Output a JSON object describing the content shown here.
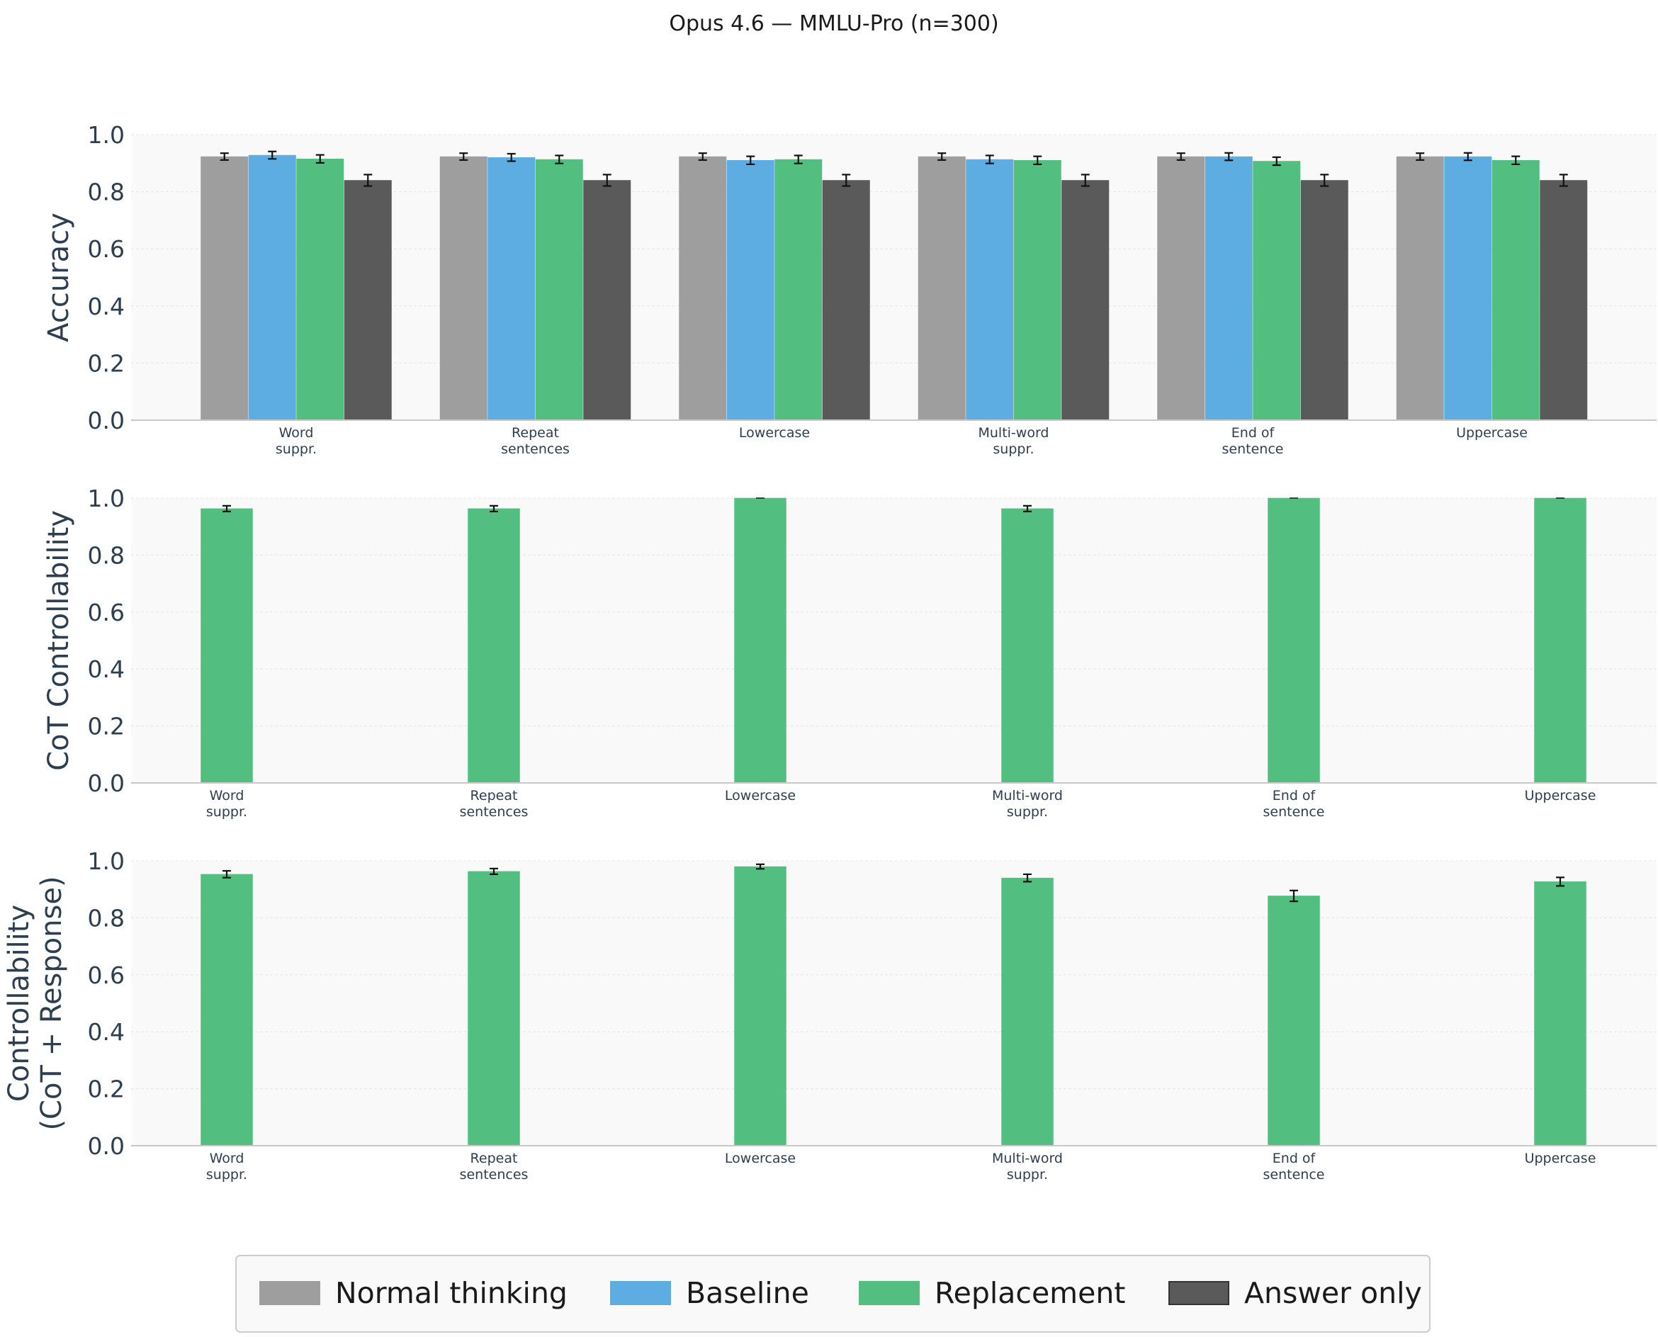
{
  "title": "Opus 4.6 — MMLU-Pro (n=300)",
  "colors": {
    "Normal thinking": "#9e9e9e",
    "Baseline": "#5dade2",
    "Replacement": "#52be80",
    "Answer only": "#5a5a5a",
    "plot_bg": "#f9f9f9",
    "axis_text": "#2c3e50"
  },
  "legend": [
    "Normal thinking",
    "Baseline",
    "Replacement",
    "Answer only"
  ],
  "chart_data": [
    {
      "type": "bar",
      "ylabel": "Accuracy",
      "ylim": [
        0,
        1.0
      ],
      "yticks": [
        "0.0",
        "0.2",
        "0.4",
        "0.6",
        "0.8",
        "1.0"
      ],
      "categories": [
        "Word\nsuppr.",
        "Repeat\nsentences",
        "Lowercase",
        "Multi-word\nsuppr.",
        "End of\nsentence",
        "Uppercase"
      ],
      "series": [
        {
          "name": "Normal thinking",
          "values": [
            0.923,
            0.923,
            0.923,
            0.923,
            0.923,
            0.923
          ],
          "err": [
            0.012,
            0.012,
            0.012,
            0.012,
            0.012,
            0.012
          ]
        },
        {
          "name": "Baseline",
          "values": [
            0.928,
            0.92,
            0.91,
            0.913,
            0.923,
            0.923
          ],
          "err": [
            0.013,
            0.013,
            0.014,
            0.014,
            0.013,
            0.013
          ]
        },
        {
          "name": "Replacement",
          "values": [
            0.915,
            0.913,
            0.913,
            0.91,
            0.907,
            0.91
          ],
          "err": [
            0.014,
            0.014,
            0.014,
            0.014,
            0.014,
            0.014
          ]
        },
        {
          "name": "Answer only",
          "values": [
            0.84,
            0.84,
            0.84,
            0.84,
            0.84,
            0.84
          ],
          "err": [
            0.02,
            0.02,
            0.02,
            0.02,
            0.02,
            0.02
          ]
        }
      ]
    },
    {
      "type": "bar",
      "ylabel": "CoT Controllability",
      "ylim": [
        0,
        1.0
      ],
      "yticks": [
        "0.0",
        "0.2",
        "0.4",
        "0.6",
        "0.8",
        "1.0"
      ],
      "categories": [
        "Word\nsuppr.",
        "Repeat\nsentences",
        "Lowercase",
        "Multi-word\nsuppr.",
        "End of\nsentence",
        "Uppercase"
      ],
      "series": [
        {
          "name": "Replacement",
          "values": [
            0.963,
            0.963,
            1.0,
            0.963,
            1.0,
            1.0
          ],
          "err": [
            0.01,
            0.01,
            0.0,
            0.01,
            0.0,
            0.0
          ]
        }
      ]
    },
    {
      "type": "bar",
      "ylabel": "Controllability\n(CoT + Response)",
      "ylim": [
        0,
        1.0
      ],
      "yticks": [
        "0.0",
        "0.2",
        "0.4",
        "0.6",
        "0.8",
        "1.0"
      ],
      "categories": [
        "Word\nsuppr.",
        "Repeat\nsentences",
        "Lowercase",
        "Multi-word\nsuppr.",
        "End of\nsentence",
        "Uppercase"
      ],
      "series": [
        {
          "name": "Replacement",
          "values": [
            0.953,
            0.963,
            0.98,
            0.94,
            0.877,
            0.927
          ],
          "err": [
            0.012,
            0.01,
            0.008,
            0.013,
            0.019,
            0.015
          ]
        }
      ]
    }
  ]
}
